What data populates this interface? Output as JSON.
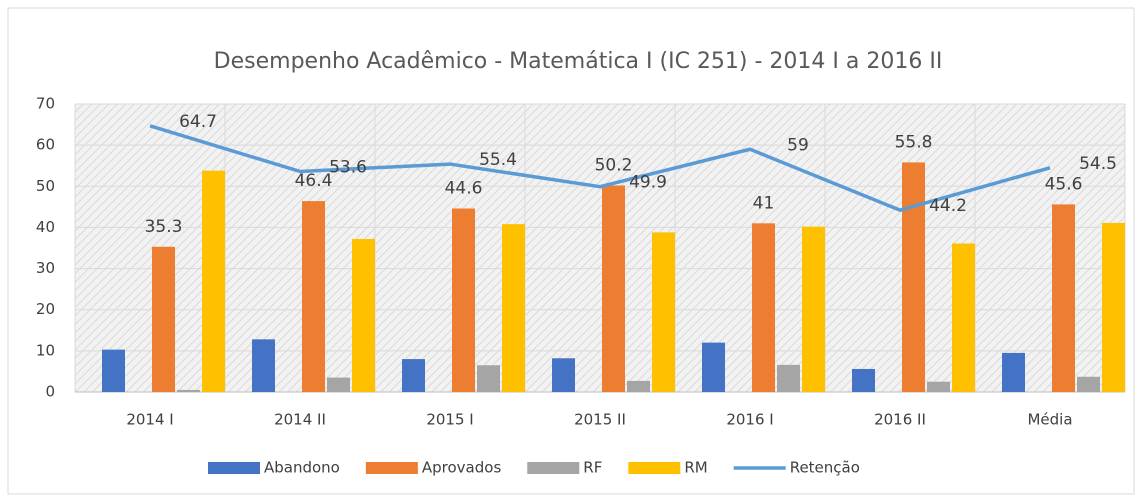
{
  "chart_data": {
    "type": "bar+line",
    "title": "Desempenho Acadêmico - Matemática I (IC 251)  -  2014 I a  2016 II",
    "categories": [
      "2014 I",
      "2014 II",
      "2015 I",
      "2015 II",
      "2016 I",
      "2016 II",
      "Média"
    ],
    "series": [
      {
        "name": "Abandono",
        "color": "#4472c4",
        "type": "bar",
        "values": [
          10.3,
          12.8,
          8.0,
          8.2,
          12.0,
          5.6,
          9.5
        ]
      },
      {
        "name": "Aprovados",
        "color": "#ed7d31",
        "type": "bar",
        "values": [
          35.3,
          46.4,
          44.6,
          50.2,
          41,
          55.8,
          45.6
        ],
        "labels": true
      },
      {
        "name": "RF",
        "color": "#a5a5a5",
        "type": "bar",
        "values": [
          0.5,
          3.5,
          6.5,
          2.7,
          6.6,
          2.5,
          3.7
        ]
      },
      {
        "name": "RM",
        "color": "#ffc000",
        "type": "bar",
        "values": [
          53.8,
          37.2,
          40.8,
          38.8,
          40.2,
          36.1,
          41.1
        ]
      },
      {
        "name": "Retenção",
        "color": "#5b9bd5",
        "type": "line",
        "values": [
          64.7,
          53.6,
          55.4,
          49.9,
          59,
          44.2,
          54.5
        ],
        "labels": true
      }
    ],
    "ylim": [
      0,
      70
    ],
    "yticks": [
      0,
      10,
      20,
      30,
      40,
      50,
      60,
      70
    ],
    "grid": true,
    "legend": "bottom"
  }
}
